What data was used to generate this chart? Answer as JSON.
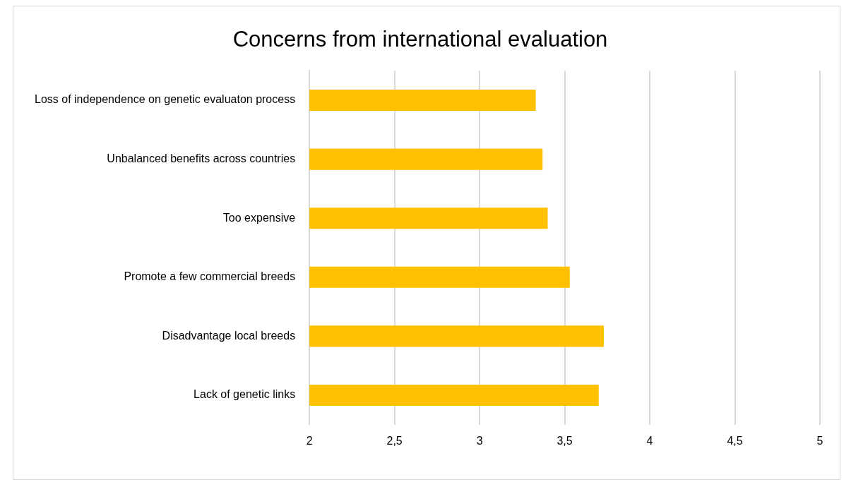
{
  "chart_data": {
    "type": "bar",
    "orientation": "horizontal",
    "title": "Concerns from international evaluation",
    "categories": [
      "Loss of independence on genetic evaluaton process",
      "Unbalanced benefits across countries",
      "Too expensive",
      "Promote a few commercial breeds",
      "Disadvantage local breeds",
      "Lack of genetic links"
    ],
    "values": [
      3.33,
      3.37,
      3.4,
      3.53,
      3.73,
      3.7
    ],
    "color": "#ffc000",
    "xlim": [
      2,
      5
    ],
    "xticks": [
      2,
      {
        "value": 2.5,
        "label": "2,5"
      },
      3,
      {
        "value": 3.5,
        "label": "3,5"
      },
      4,
      {
        "value": 4.5,
        "label": "4,5"
      },
      5
    ],
    "grid": "x",
    "legend": false
  }
}
